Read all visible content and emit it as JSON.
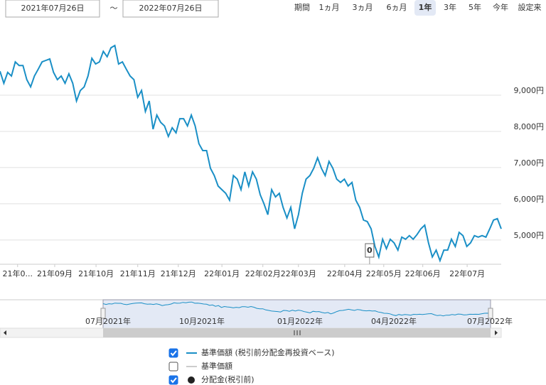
{
  "controls": {
    "from": "2021年07月26日",
    "tilde": "～",
    "to": "2022年07月26日",
    "period_label": "期間",
    "periods": [
      {
        "label": "1ヵ月",
        "state": "normal"
      },
      {
        "label": "3ヵ月",
        "state": "normal"
      },
      {
        "label": "6ヵ月",
        "state": "normal"
      },
      {
        "label": "1年",
        "state": "active"
      },
      {
        "label": "3年",
        "state": "disabled"
      },
      {
        "label": "5年",
        "state": "disabled"
      },
      {
        "label": "今年",
        "state": "normal"
      },
      {
        "label": "設定来",
        "state": "normal"
      }
    ]
  },
  "chart_data": {
    "type": "line",
    "series": [
      {
        "name": "基準価額 (税引前分配金再投資ベース)",
        "color": "#1a8fc6",
        "checked": true,
        "values": [
          9660,
          9330,
          9630,
          9530,
          9920,
          9820,
          9820,
          9430,
          9230,
          9530,
          9720,
          9920,
          9960,
          10000,
          9630,
          9430,
          9530,
          9330,
          9590,
          9330,
          8840,
          9130,
          9230,
          9530,
          10020,
          9860,
          9920,
          10210,
          10060,
          10310,
          10370,
          9860,
          9920,
          9720,
          9530,
          9430,
          8940,
          9130,
          8550,
          8840,
          8060,
          8450,
          8250,
          8150,
          7860,
          8100,
          7960,
          8350,
          8350,
          8150,
          8450,
          8150,
          7660,
          7470,
          7470,
          6980,
          6780,
          6490,
          6390,
          6290,
          6100,
          6780,
          6680,
          6390,
          6880,
          6490,
          6880,
          6680,
          6250,
          6000,
          5700,
          6390,
          6190,
          6290,
          5900,
          5610,
          5900,
          5310,
          5700,
          6290,
          6680,
          6780,
          6980,
          7270,
          6980,
          6780,
          7170,
          6980,
          6680,
          6590,
          6680,
          6490,
          6590,
          6100,
          5900,
          5550,
          5510,
          5310,
          4820,
          4530,
          5020,
          4760,
          5020,
          4920,
          4720,
          5080,
          5020,
          5120,
          5020,
          5150,
          5310,
          5410,
          4920,
          4530,
          4720,
          4430,
          4720,
          4720,
          5020,
          4820,
          5210,
          5120,
          4820,
          4920,
          5120,
          5080,
          5120,
          5080,
          5310,
          5550,
          5590,
          5310
        ]
      }
    ],
    "legend_extra": [
      {
        "name": "基準価額",
        "color": "#cccccc",
        "checked": false
      },
      {
        "name": "分配金(税引前)",
        "color": "#222222",
        "checked": true
      }
    ],
    "xlim": [
      0,
      131
    ],
    "xticks": [
      {
        "value": 4.6,
        "label": "21年0..."
      },
      {
        "value": 14.3,
        "label": "21年09月"
      },
      {
        "value": 25.1,
        "label": "21年10月"
      },
      {
        "value": 36.0,
        "label": "21年11月"
      },
      {
        "value": 46.6,
        "label": "21年12月"
      },
      {
        "value": 58.0,
        "label": "22年01月"
      },
      {
        "value": 68.7,
        "label": "22年02月"
      },
      {
        "value": 78.0,
        "label": "22年03月"
      },
      {
        "value": 90.1,
        "label": "22年04月"
      },
      {
        "value": 100.3,
        "label": "22年05月"
      },
      {
        "value": 110.5,
        "label": "22年06月"
      },
      {
        "value": 122.1,
        "label": "22年07月"
      }
    ],
    "ylim": [
      4330,
      11040
    ],
    "yticks": [
      {
        "value": 5000,
        "label": "5,000円"
      },
      {
        "value": 6000,
        "label": "6,000円"
      },
      {
        "value": 7000,
        "label": "7,000円"
      },
      {
        "value": 8000,
        "label": "8,000円"
      },
      {
        "value": 9000,
        "label": "9,000円"
      }
    ],
    "grid": true,
    "annotations": [
      {
        "text": "0",
        "x": 96.6
      }
    ],
    "navigator": {
      "labels": [
        "07月2021年",
        "10月2021年",
        "01月2022年",
        "04月2022年",
        "07月2022年"
      ]
    }
  }
}
